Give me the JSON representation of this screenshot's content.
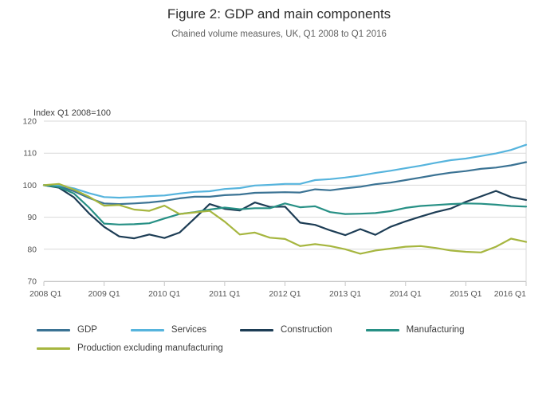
{
  "header": {
    "title": "Figure 2: GDP and main components",
    "subtitle": "Chained volume measures, UK, Q1 2008 to Q1 2016"
  },
  "chart_data": {
    "type": "line",
    "title": "Figure 2: GDP and main components",
    "subtitle": "Chained volume measures, UK, Q1 2008 to Q1 2016",
    "y_axis_title": "Index Q1 2008=100",
    "ylim": [
      70,
      120
    ],
    "y_ticks": [
      70,
      80,
      90,
      100,
      110,
      120
    ],
    "x_tick_labels": [
      "2008 Q1",
      "2009 Q1",
      "2010 Q1",
      "2011 Q1",
      "2012 Q1",
      "2013 Q1",
      "2014 Q1",
      "2015 Q1",
      "2016 Q1"
    ],
    "grid": "horizontal",
    "legend_position": "bottom-left",
    "categories": [
      "2008 Q1",
      "2008 Q2",
      "2008 Q3",
      "2008 Q4",
      "2009 Q1",
      "2009 Q2",
      "2009 Q3",
      "2009 Q4",
      "2010 Q1",
      "2010 Q2",
      "2010 Q3",
      "2010 Q4",
      "2011 Q1",
      "2011 Q2",
      "2011 Q3",
      "2011 Q4",
      "2012 Q1",
      "2012 Q2",
      "2012 Q3",
      "2012 Q4",
      "2013 Q1",
      "2013 Q2",
      "2013 Q3",
      "2013 Q4",
      "2014 Q1",
      "2014 Q2",
      "2014 Q3",
      "2014 Q4",
      "2015 Q1",
      "2015 Q2",
      "2015 Q3",
      "2015 Q4",
      "2016 Q1"
    ],
    "series": [
      {
        "name": "GDP",
        "color": "#3b7394",
        "values": [
          100,
          99.7,
          98.1,
          96.0,
          94.3,
          94.1,
          94.3,
          94.6,
          95.1,
          95.9,
          96.4,
          96.4,
          96.9,
          97.1,
          97.6,
          97.7,
          97.8,
          97.7,
          98.7,
          98.4,
          99.0,
          99.5,
          100.3,
          100.8,
          101.6,
          102.4,
          103.2,
          103.9,
          104.4,
          105.1,
          105.5,
          106.2,
          107.2
        ]
      },
      {
        "name": "Services",
        "color": "#56b4dd",
        "values": [
          100,
          100.0,
          99.0,
          97.5,
          96.3,
          96.1,
          96.3,
          96.6,
          96.8,
          97.4,
          97.9,
          98.1,
          98.8,
          99.1,
          99.9,
          100.1,
          100.4,
          100.4,
          101.6,
          101.9,
          102.4,
          103.0,
          103.8,
          104.5,
          105.3,
          106.1,
          107.0,
          107.8,
          108.3,
          109.1,
          109.9,
          111.0,
          112.6
        ]
      },
      {
        "name": "Construction",
        "color": "#1d3d55",
        "values": [
          100,
          99.2,
          96.2,
          91.2,
          87.0,
          84.0,
          83.4,
          84.6,
          83.5,
          85.2,
          89.6,
          94.1,
          92.6,
          92.1,
          94.6,
          93.2,
          93.3,
          88.3,
          87.6,
          85.9,
          84.4,
          86.3,
          84.5,
          87.0,
          88.7,
          90.2,
          91.6,
          92.7,
          94.8,
          96.5,
          98.2,
          96.3,
          95.4
        ]
      },
      {
        "name": "Manufacturing",
        "color": "#279085",
        "values": [
          100,
          99.4,
          97.4,
          93.0,
          88.0,
          87.7,
          87.8,
          88.1,
          89.6,
          91.0,
          91.6,
          92.4,
          93.0,
          92.5,
          92.8,
          92.8,
          94.3,
          93.1,
          93.4,
          91.6,
          91.0,
          91.1,
          91.3,
          91.9,
          92.9,
          93.5,
          93.8,
          94.1,
          94.3,
          94.2,
          93.9,
          93.5,
          93.3
        ]
      },
      {
        "name": "Production excluding manufacturing",
        "color": "#a6b63f",
        "values": [
          100,
          100.4,
          98.6,
          96.4,
          93.6,
          93.8,
          92.4,
          92.0,
          93.6,
          91.0,
          91.5,
          92.0,
          88.6,
          84.6,
          85.2,
          83.6,
          83.2,
          81.0,
          81.6,
          81.0,
          80.0,
          78.6,
          79.6,
          80.2,
          80.8,
          81.0,
          80.4,
          79.6,
          79.2,
          79.0,
          80.8,
          83.3,
          82.3
        ]
      }
    ]
  }
}
